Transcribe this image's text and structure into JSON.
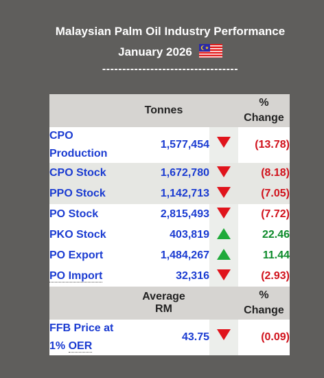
{
  "header": {
    "title_line1": "Malaysian Palm Oil Industry Performance",
    "title_line2": "January 2026",
    "divider": "----------------------------------"
  },
  "table": {
    "columns": {
      "tonnes": "Tonnes",
      "pct_line1": "%",
      "pct_line2": "Change"
    },
    "rows": [
      {
        "name_line1": "CPO",
        "name_line2": "Production",
        "value": "1,577,454",
        "trend": "down",
        "change": "(13.78)"
      },
      {
        "name": "CPO Stock",
        "value": "1,672,780",
        "trend": "down",
        "change": "(8.18)"
      },
      {
        "name": "PPO Stock",
        "value": "1,142,713",
        "trend": "down",
        "change": "(7.05)"
      },
      {
        "name": "PO Stock",
        "value": "2,815,493",
        "trend": "down",
        "change": "(7.72)"
      },
      {
        "name": "PKO Stock",
        "value": "403,819",
        "trend": "up",
        "change": "22.46"
      },
      {
        "name": "PO Export",
        "value": "1,484,267",
        "trend": "up",
        "change": "11.44"
      },
      {
        "name": "PO Import",
        "value": "32,316",
        "trend": "down",
        "change": "(2.93)"
      }
    ],
    "price_header": {
      "average": "Average RM",
      "pct_line1": "%",
      "pct_line2": "Change"
    },
    "price_row": {
      "name_line1": "FFB Price at",
      "name_line2a": "1% ",
      "name_line2b": "OER",
      "value": "43.75",
      "trend": "down",
      "change": "(0.09)"
    }
  },
  "colors": {
    "background": "#5f5e5c",
    "link": "#1a3bd1",
    "negative": "#d0101a",
    "positive": "#0c8a2a",
    "down_arrow": "#e0141c",
    "up_arrow": "#1faa3a"
  },
  "icons": {
    "flag": "malaysia-flag-icon",
    "down": "triangle-down-icon",
    "up": "triangle-up-icon"
  }
}
